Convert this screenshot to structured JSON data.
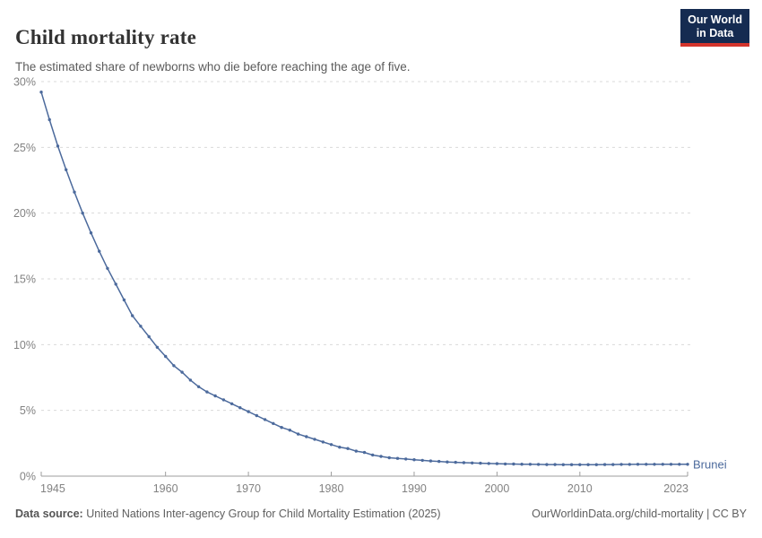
{
  "header": {
    "title": "Child mortality rate",
    "subtitle": "The estimated share of newborns who die before reaching the age of five.",
    "logo": {
      "line1": "Our World",
      "line2": "in Data"
    }
  },
  "colors": {
    "series_blue": "#4C6A9C",
    "logo_navy": "#152B51",
    "logo_red": "#D3342C",
    "grid": "#dadada",
    "axis": "#9e9e9e",
    "tick_label": "#828282",
    "title_text": "#333333",
    "subtitle_text": "#5b5b5b"
  },
  "chart_data": {
    "type": "line",
    "title": "Child mortality rate",
    "xlabel": "",
    "ylabel": "",
    "xlim": [
      1945,
      2023
    ],
    "ylim": [
      0,
      30
    ],
    "x_ticks": [
      1945,
      1960,
      1970,
      1980,
      1990,
      2000,
      2010,
      2023
    ],
    "y_ticks": [
      0,
      5,
      10,
      15,
      20,
      25,
      30
    ],
    "y_tick_suffix": "%",
    "grid": "dashed-horizontal",
    "legend_position": "end-of-line",
    "series": [
      {
        "name": "Brunei",
        "color": "#4C6A9C",
        "x": [
          1945,
          1946,
          1947,
          1948,
          1949,
          1950,
          1951,
          1952,
          1953,
          1954,
          1955,
          1956,
          1957,
          1958,
          1959,
          1960,
          1961,
          1962,
          1963,
          1964,
          1965,
          1966,
          1967,
          1968,
          1969,
          1970,
          1971,
          1972,
          1973,
          1974,
          1975,
          1976,
          1977,
          1978,
          1979,
          1980,
          1981,
          1982,
          1983,
          1984,
          1985,
          1986,
          1987,
          1988,
          1989,
          1990,
          1991,
          1992,
          1993,
          1994,
          1995,
          1996,
          1997,
          1998,
          1999,
          2000,
          2001,
          2002,
          2003,
          2004,
          2005,
          2006,
          2007,
          2008,
          2009,
          2010,
          2011,
          2012,
          2013,
          2014,
          2015,
          2016,
          2017,
          2018,
          2019,
          2020,
          2021,
          2022,
          2023
        ],
        "values": [
          29.2,
          27.1,
          25.1,
          23.3,
          21.6,
          20.0,
          18.5,
          17.1,
          15.8,
          14.6,
          13.4,
          12.2,
          11.4,
          10.6,
          9.8,
          9.1,
          8.4,
          7.9,
          7.3,
          6.8,
          6.4,
          6.1,
          5.8,
          5.5,
          5.2,
          4.9,
          4.6,
          4.3,
          4.0,
          3.7,
          3.5,
          3.2,
          3.0,
          2.8,
          2.6,
          2.4,
          2.2,
          2.1,
          1.9,
          1.8,
          1.6,
          1.5,
          1.4,
          1.35,
          1.3,
          1.25,
          1.2,
          1.15,
          1.12,
          1.08,
          1.05,
          1.02,
          1.0,
          0.98,
          0.96,
          0.95,
          0.93,
          0.92,
          0.91,
          0.9,
          0.89,
          0.88,
          0.88,
          0.87,
          0.87,
          0.87,
          0.87,
          0.87,
          0.88,
          0.88,
          0.89,
          0.89,
          0.9,
          0.9,
          0.9,
          0.9,
          0.9,
          0.9,
          0.9
        ]
      }
    ]
  },
  "footer": {
    "source_label": "Data source:",
    "source_text": "United Nations Inter-agency Group for Child Mortality Estimation (2025)",
    "attribution": "OurWorldinData.org/child-mortality | CC BY"
  }
}
